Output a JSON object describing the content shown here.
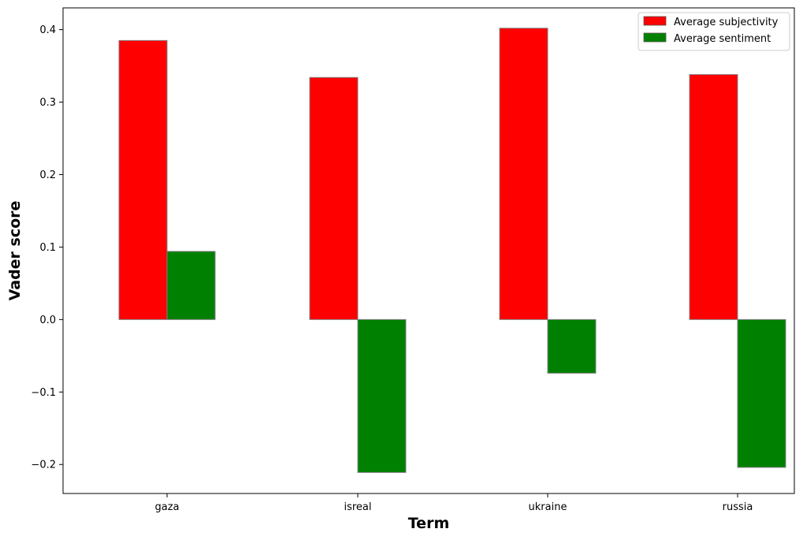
{
  "chart_data": {
    "type": "bar",
    "title": "",
    "xlabel": "Term",
    "ylabel": "Vader score",
    "categories": [
      "gaza",
      "isreal",
      "ukraine",
      "russia"
    ],
    "series": [
      {
        "name": "Average subjectivity",
        "color": "#ff0000",
        "values": [
          0.385,
          0.334,
          0.402,
          0.338
        ]
      },
      {
        "name": "Average sentiment",
        "color": "#008000",
        "values": [
          0.094,
          -0.211,
          -0.074,
          -0.204
        ]
      }
    ],
    "ylim": [
      -0.24,
      0.43
    ],
    "yticks": [
      -0.2,
      -0.1,
      0.0,
      0.1,
      0.2,
      0.3,
      0.4
    ],
    "ytick_labels": [
      "−0.2",
      "−0.1",
      "0.0",
      "0.1",
      "0.2",
      "0.3",
      "0.4"
    ],
    "grid": false,
    "legend_position": "top-right"
  }
}
